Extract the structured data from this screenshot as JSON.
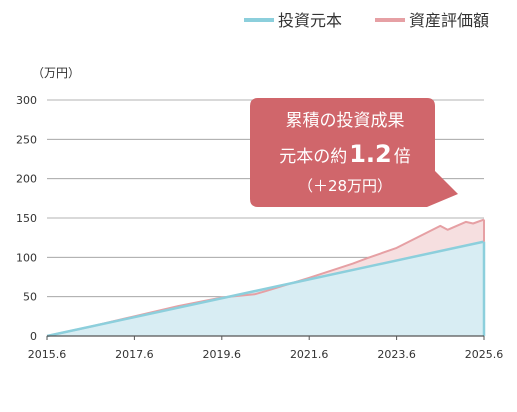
{
  "chart_data": {
    "type": "area",
    "unit_label": "（万円）",
    "x_ticks": [
      "2015.6",
      "2017.6",
      "2019.6",
      "2021.6",
      "2023.6",
      "2025.6"
    ],
    "y_ticks": [
      "0",
      "50",
      "100",
      "150",
      "200",
      "250",
      "300"
    ],
    "xlim": [
      "2015-06",
      "2025-06"
    ],
    "ylim": [
      0,
      300
    ],
    "grid": true,
    "legend_position": "top-right",
    "series": [
      {
        "name": "投資元本",
        "color": "#8ccfdc",
        "fill": "#d8edf3",
        "x": [
          "2015-06",
          "2025-06"
        ],
        "values": [
          0,
          120
        ]
      },
      {
        "name": "資産評価額",
        "color": "#e6a0a4",
        "fill": "#f6dfe0",
        "x": [
          "2015-06",
          "2016-06",
          "2017-06",
          "2018-06",
          "2019-06",
          "2020-03",
          "2020-06",
          "2021-06",
          "2022-06",
          "2022-10",
          "2023-06",
          "2024-06",
          "2024-08",
          "2025-01",
          "2025-03",
          "2025-06"
        ],
        "values": [
          0,
          12,
          25,
          38,
          49,
          53,
          57,
          74,
          92,
          99,
          112,
          140,
          135,
          145,
          143,
          148
        ]
      }
    ],
    "annotation": {
      "line1": "累積の投資成果",
      "line2_prefix": "元本の約",
      "line2_value": "1.2",
      "line2_suffix": "倍",
      "line3": "（＋28万円）",
      "color": "#d0666b"
    }
  }
}
